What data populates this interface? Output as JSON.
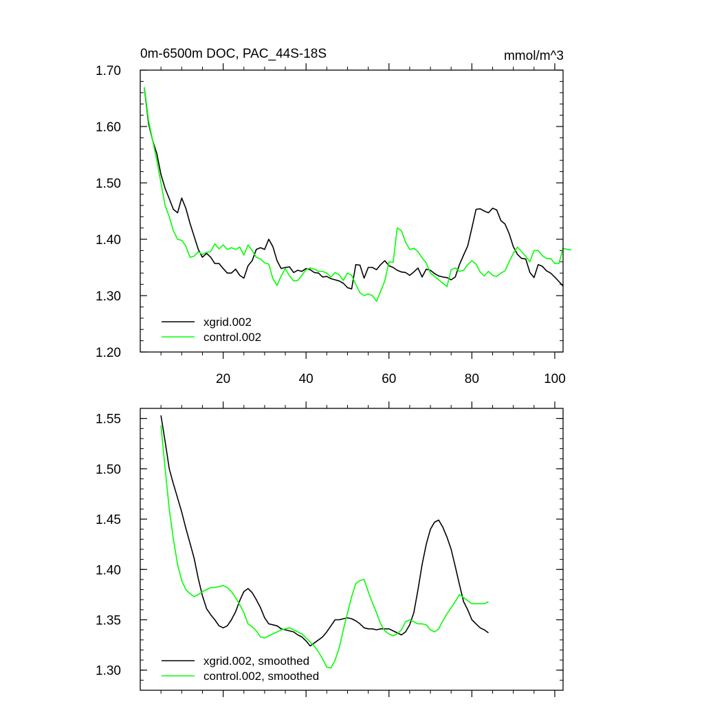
{
  "colors": {
    "xgrid": "#000000",
    "control": "#00ff00",
    "axis": "#000000"
  },
  "chart_data": [
    {
      "type": "line",
      "title": "0m-6500m DOC, PAC_44S-18S",
      "units": "mmol/m^3",
      "xlabel": "",
      "ylabel": "",
      "xlim": [
        0,
        102
      ],
      "ylim": [
        1.2,
        1.7
      ],
      "ytick_labels": [
        "1.20",
        "1.30",
        "1.40",
        "1.50",
        "1.60",
        "1.70"
      ],
      "ytick_values": [
        1.2,
        1.3,
        1.4,
        1.5,
        1.6,
        1.7
      ],
      "xtick_labels": [
        "20",
        "40",
        "60",
        "80",
        "100"
      ],
      "xtick_values": [
        20,
        40,
        60,
        80,
        100
      ],
      "legend_position": "bottom-left",
      "series": [
        {
          "name": "xgrid.002",
          "color": "#000000",
          "x_start": 1,
          "values": [
            1.668,
            1.605,
            1.575,
            1.552,
            1.515,
            1.49,
            1.472,
            1.453,
            1.447,
            1.473,
            1.455,
            1.428,
            1.405,
            1.382,
            1.368,
            1.375,
            1.368,
            1.357,
            1.357,
            1.348,
            1.34,
            1.34,
            1.347,
            1.336,
            1.331,
            1.353,
            1.362,
            1.382,
            1.385,
            1.382,
            1.4,
            1.387,
            1.362,
            1.348,
            1.35,
            1.351,
            1.341,
            1.345,
            1.343,
            1.348,
            1.346,
            1.341,
            1.34,
            1.333,
            1.334,
            1.33,
            1.328,
            1.326,
            1.322,
            1.314,
            1.312,
            1.355,
            1.354,
            1.331,
            1.35,
            1.35,
            1.346,
            1.355,
            1.362,
            1.353,
            1.35,
            1.345,
            1.342,
            1.341,
            1.336,
            1.342,
            1.349,
            1.333,
            1.347,
            1.345,
            1.339,
            1.335,
            1.333,
            1.332,
            1.328,
            1.333,
            1.355,
            1.372,
            1.388,
            1.42,
            1.453,
            1.454,
            1.45,
            1.447,
            1.455,
            1.452,
            1.433,
            1.427,
            1.41,
            1.387,
            1.373,
            1.366,
            1.365,
            1.341,
            1.332,
            1.355,
            1.352,
            1.344,
            1.34,
            1.333,
            1.325,
            1.317
          ]
        },
        {
          "name": "control.002",
          "color": "#00ff00",
          "x_start": 1,
          "values": [
            1.67,
            1.61,
            1.575,
            1.54,
            1.5,
            1.46,
            1.44,
            1.415,
            1.4,
            1.398,
            1.388,
            1.368,
            1.37,
            1.378,
            1.373,
            1.377,
            1.378,
            1.392,
            1.383,
            1.39,
            1.382,
            1.385,
            1.382,
            1.386,
            1.372,
            1.39,
            1.38,
            1.368,
            1.365,
            1.358,
            1.356,
            1.33,
            1.318,
            1.335,
            1.348,
            1.335,
            1.326,
            1.327,
            1.336,
            1.346,
            1.349,
            1.347,
            1.343,
            1.343,
            1.34,
            1.333,
            1.341,
            1.337,
            1.327,
            1.34,
            1.336,
            1.32,
            1.305,
            1.3,
            1.303,
            1.3,
            1.29,
            1.308,
            1.326,
            1.36,
            1.359,
            1.42,
            1.415,
            1.395,
            1.382,
            1.384,
            1.378,
            1.367,
            1.358,
            1.34,
            1.334,
            1.328,
            1.322,
            1.316,
            1.346,
            1.349,
            1.343,
            1.345,
            1.355,
            1.362,
            1.356,
            1.342,
            1.335,
            1.343,
            1.336,
            1.334,
            1.34,
            1.344,
            1.36,
            1.375,
            1.386,
            1.378,
            1.37,
            1.36,
            1.38,
            1.38,
            1.371,
            1.366,
            1.366,
            1.357,
            1.357,
            1.384,
            1.382,
            1.381
          ]
        }
      ]
    },
    {
      "type": "line",
      "title": "",
      "xlabel": "",
      "ylabel": "",
      "xlim": [
        0,
        102
      ],
      "ylim": [
        1.28,
        1.56
      ],
      "ytick_labels": [
        "1.30",
        "1.35",
        "1.40",
        "1.45",
        "1.50",
        "1.55"
      ],
      "ytick_values": [
        1.3,
        1.35,
        1.4,
        1.45,
        1.5,
        1.55
      ],
      "legend_position": "bottom-left",
      "series": [
        {
          "name": "xgrid.002, smoothed",
          "color": "#000000",
          "x_start": 5,
          "values": [
            1.553,
            1.527,
            1.5,
            1.485,
            1.471,
            1.457,
            1.441,
            1.426,
            1.411,
            1.391,
            1.374,
            1.361,
            1.355,
            1.35,
            1.344,
            1.342,
            1.344,
            1.35,
            1.358,
            1.369,
            1.378,
            1.381,
            1.377,
            1.37,
            1.362,
            1.352,
            1.346,
            1.345,
            1.344,
            1.341,
            1.34,
            1.339,
            1.338,
            1.335,
            1.333,
            1.329,
            1.324,
            1.327,
            1.33,
            1.333,
            1.338,
            1.344,
            1.35,
            1.35,
            1.351,
            1.352,
            1.351,
            1.349,
            1.346,
            1.342,
            1.341,
            1.341,
            1.34,
            1.341,
            1.341,
            1.341,
            1.339,
            1.337,
            1.335,
            1.338,
            1.345,
            1.357,
            1.38,
            1.405,
            1.425,
            1.44,
            1.447,
            1.449,
            1.442,
            1.432,
            1.42,
            1.403,
            1.385,
            1.368,
            1.36,
            1.35,
            1.346,
            1.342,
            1.34,
            1.337
          ]
        },
        {
          "name": "control.002, smoothed",
          "color": "#00ff00",
          "x_start": 5,
          "values": [
            1.543,
            1.5,
            1.46,
            1.43,
            1.405,
            1.389,
            1.38,
            1.376,
            1.373,
            1.375,
            1.378,
            1.38,
            1.382,
            1.382,
            1.383,
            1.384,
            1.382,
            1.378,
            1.372,
            1.365,
            1.357,
            1.346,
            1.343,
            1.339,
            1.333,
            1.332,
            1.334,
            1.336,
            1.338,
            1.34,
            1.341,
            1.342,
            1.34,
            1.338,
            1.336,
            1.332,
            1.328,
            1.324,
            1.318,
            1.311,
            1.303,
            1.302,
            1.31,
            1.322,
            1.34,
            1.357,
            1.373,
            1.386,
            1.389,
            1.39,
            1.378,
            1.367,
            1.357,
            1.346,
            1.339,
            1.336,
            1.334,
            1.336,
            1.34,
            1.348,
            1.35,
            1.348,
            1.346,
            1.346,
            1.345,
            1.34,
            1.338,
            1.341,
            1.349,
            1.356,
            1.362,
            1.368,
            1.375,
            1.372,
            1.369,
            1.366,
            1.366,
            1.366,
            1.366,
            1.368
          ]
        }
      ]
    }
  ]
}
